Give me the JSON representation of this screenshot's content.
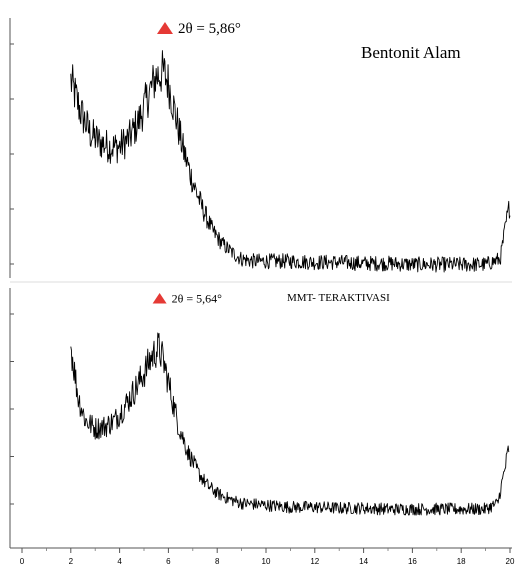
{
  "chart_data": [
    {
      "type": "line",
      "title": "Bentonit Alam",
      "xlabel": "",
      "ylabel": "",
      "xlim": [
        0,
        20
      ],
      "grid": false,
      "annotations": [
        {
          "label": "2θ = 5,86°",
          "x": 5.86,
          "marker": "triangle",
          "marker_color": "#e53935"
        }
      ],
      "series": [
        {
          "color": "#000000",
          "x": [
            2.0,
            2.4,
            2.8,
            3.2,
            3.6,
            4.0,
            4.4,
            4.8,
            5.2,
            5.5,
            5.8,
            6.0,
            6.3,
            6.6,
            7.0,
            7.4,
            7.8,
            8.2,
            8.6,
            9.0,
            9.5,
            10,
            11,
            12,
            13,
            14,
            15,
            16,
            17,
            18,
            19,
            19.6,
            19.85,
            20.0
          ],
          "y": [
            0.86,
            0.72,
            0.62,
            0.58,
            0.56,
            0.56,
            0.6,
            0.68,
            0.8,
            0.88,
            0.9,
            0.85,
            0.7,
            0.55,
            0.4,
            0.28,
            0.18,
            0.12,
            0.08,
            0.05,
            0.04,
            0.04,
            0.04,
            0.035,
            0.035,
            0.03,
            0.03,
            0.025,
            0.025,
            0.025,
            0.025,
            0.05,
            0.22,
            0.3
          ]
        }
      ]
    },
    {
      "type": "line",
      "title": "MMT- TERAKTIVASI",
      "xlabel": "",
      "ylabel": "",
      "xlim": [
        0,
        20
      ],
      "grid": false,
      "x_ticks": [
        "0",
        "2",
        "4",
        "6",
        "8",
        "10",
        "12",
        "14",
        "16",
        "18",
        "20"
      ],
      "annotations": [
        {
          "label": "2θ = 5,64°",
          "x": 5.64,
          "marker": "triangle",
          "marker_color": "#e53935"
        }
      ],
      "series": [
        {
          "color": "#000000",
          "x": [
            2.0,
            2.3,
            2.6,
            3.0,
            3.4,
            3.8,
            4.2,
            4.6,
            5.0,
            5.3,
            5.6,
            5.8,
            6.1,
            6.4,
            6.8,
            7.2,
            7.6,
            8.0,
            8.5,
            9.0,
            10,
            11,
            12,
            13,
            14,
            15,
            16,
            17,
            18,
            19,
            19.5,
            19.8,
            19.95
          ],
          "y": [
            0.86,
            0.6,
            0.48,
            0.44,
            0.45,
            0.48,
            0.55,
            0.63,
            0.72,
            0.8,
            0.85,
            0.78,
            0.62,
            0.46,
            0.32,
            0.22,
            0.15,
            0.11,
            0.08,
            0.06,
            0.05,
            0.04,
            0.04,
            0.035,
            0.035,
            0.03,
            0.03,
            0.03,
            0.03,
            0.03,
            0.06,
            0.24,
            0.34
          ]
        }
      ]
    }
  ]
}
